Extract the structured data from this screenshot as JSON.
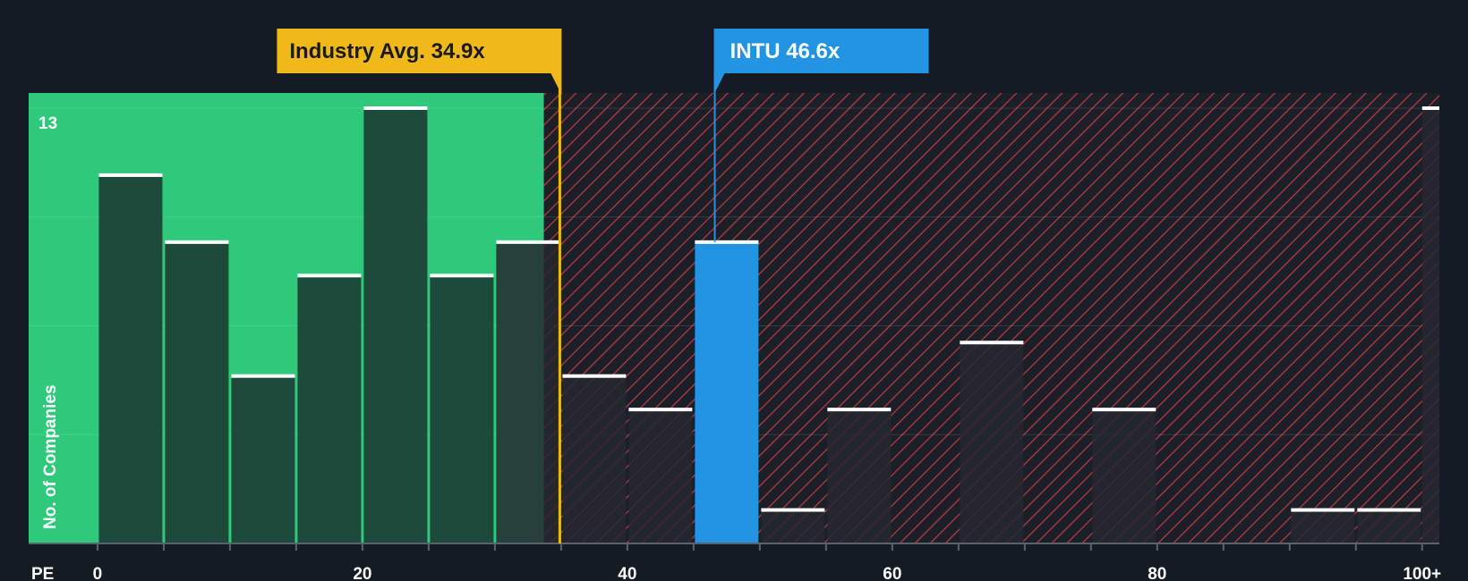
{
  "chart_data": {
    "type": "bar",
    "title": "",
    "xlabel": "PE",
    "ylabel": "No. of Companies",
    "xlim": [
      -5.2,
      101.3
    ],
    "ylim": [
      0,
      13.5
    ],
    "y_max_label": "13",
    "x_ticks": [
      0,
      20,
      40,
      60,
      80,
      100
    ],
    "x_tick_labels": [
      "0",
      "20",
      "40",
      "60",
      "80",
      "100+"
    ],
    "bins": [
      {
        "from": 0,
        "to": 5,
        "count": 11
      },
      {
        "from": 5,
        "to": 10,
        "count": 9
      },
      {
        "from": 10,
        "to": 15,
        "count": 5
      },
      {
        "from": 15,
        "to": 20,
        "count": 8
      },
      {
        "from": 20,
        "to": 25,
        "count": 13
      },
      {
        "from": 25,
        "to": 30,
        "count": 8
      },
      {
        "from": 30,
        "to": 35,
        "count": 9
      },
      {
        "from": 35,
        "to": 40,
        "count": 5
      },
      {
        "from": 40,
        "to": 45,
        "count": 4
      },
      {
        "from": 45,
        "to": 50,
        "count": 9,
        "highlight": true
      },
      {
        "from": 50,
        "to": 55,
        "count": 1
      },
      {
        "from": 55,
        "to": 60,
        "count": 4
      },
      {
        "from": 65,
        "to": 70,
        "count": 6
      },
      {
        "from": 75,
        "to": 80,
        "count": 4
      },
      {
        "from": 90,
        "to": 95,
        "count": 1
      },
      {
        "from": 95,
        "to": 100,
        "count": 1
      },
      {
        "from": 100,
        "to": 102.6,
        "count": 13
      }
    ],
    "shaded_green_end": 33.7,
    "industry_avg": {
      "value": 34.9,
      "label": "Industry Avg. 34.9x"
    },
    "company": {
      "value": 46.6,
      "label": "INTU 46.6x",
      "ticker": "INTU"
    },
    "grid": true,
    "colors": {
      "background": "#151b24",
      "green_zone": "#2ec97a",
      "bar_in_green": "#1d4a3b",
      "bar_in_red": "#262830",
      "hatch": "#c0393f",
      "avg_marker": "#f0b818",
      "company_bar": "#2394e4",
      "bar_cap": "#ffffff"
    }
  }
}
